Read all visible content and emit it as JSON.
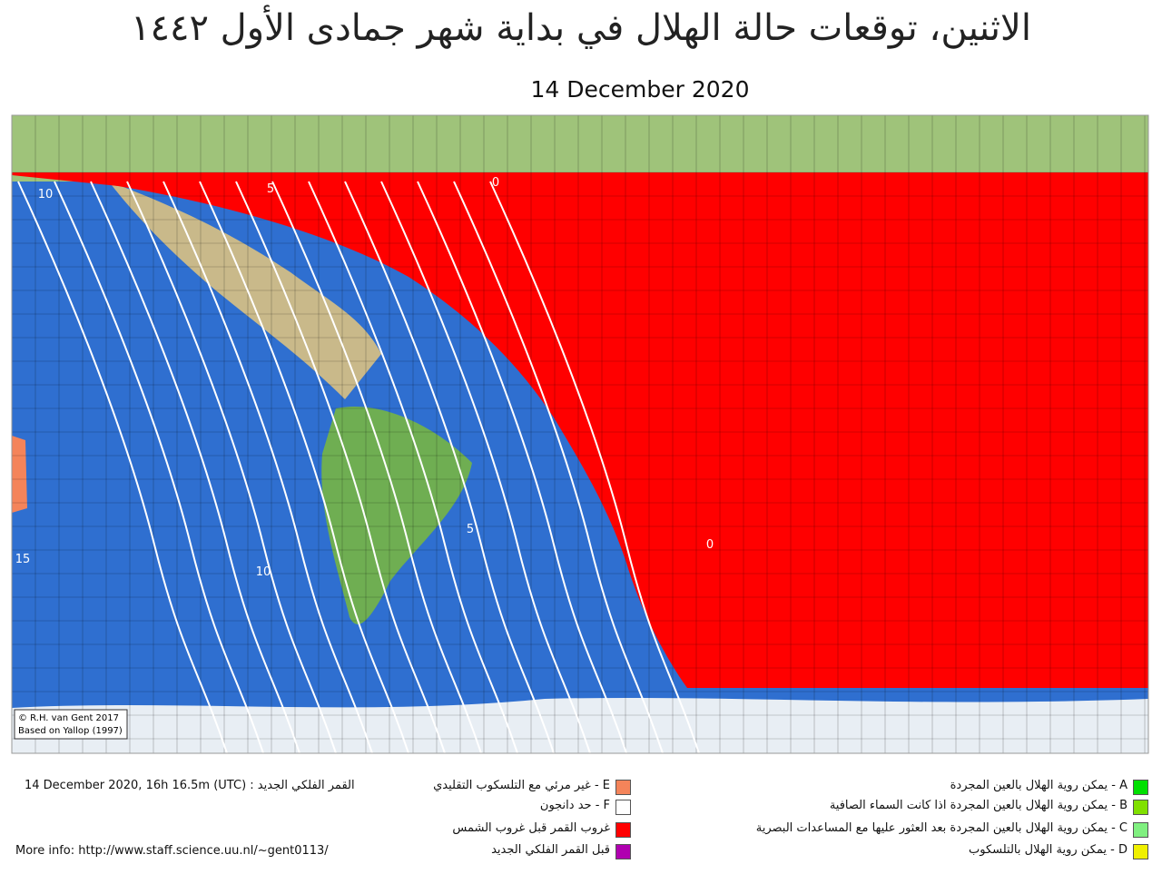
{
  "header": {
    "title": "الاثنين، توقعات حالة الهلال في بداية شهر جمادى الأول ١٤٤٢",
    "date": "14 December 2020"
  },
  "map": {
    "contour_labels": [
      "10",
      "5",
      "0",
      "15",
      "10",
      "5",
      "0"
    ],
    "credits": [
      "© R.H. van Gent 2017",
      "Based on Yallop (1997)"
    ]
  },
  "footer": {
    "new_moon": "14 December 2020, 16h 16.5m (UTC) : القمر الفلكي الجديد",
    "more_info": "More info: http://www.staff.science.uu.nl/~gent0113/"
  },
  "legend": [
    {
      "label": "E - غير مرئي مع التلسكوب التقليدي",
      "color": "#f4845a"
    },
    {
      "label": "F - حد دانجون",
      "color": "#ffffff"
    },
    {
      "label": "غروب القمر قبل غروب الشمس",
      "color": "#ff0000"
    },
    {
      "label": "قبل القمر الفلكي الجديد",
      "color": "#b000b0"
    },
    {
      "label": "A - يمكن روية الهلال بالعين المجردة",
      "color": "#00e000"
    },
    {
      "label": "B - يمكن روية الهلال بالعين المجردة اذا كانت السماء الصافية",
      "color": "#80e000"
    },
    {
      "label": "C - يمكن روية الهلال بالعين المجردة بعد العثور عليها مع المساعدات البصرية",
      "color": "#80f080"
    },
    {
      "label": "D - يمكن روية الهلال بالتلسكوب",
      "color": "#f0f000"
    }
  ]
}
